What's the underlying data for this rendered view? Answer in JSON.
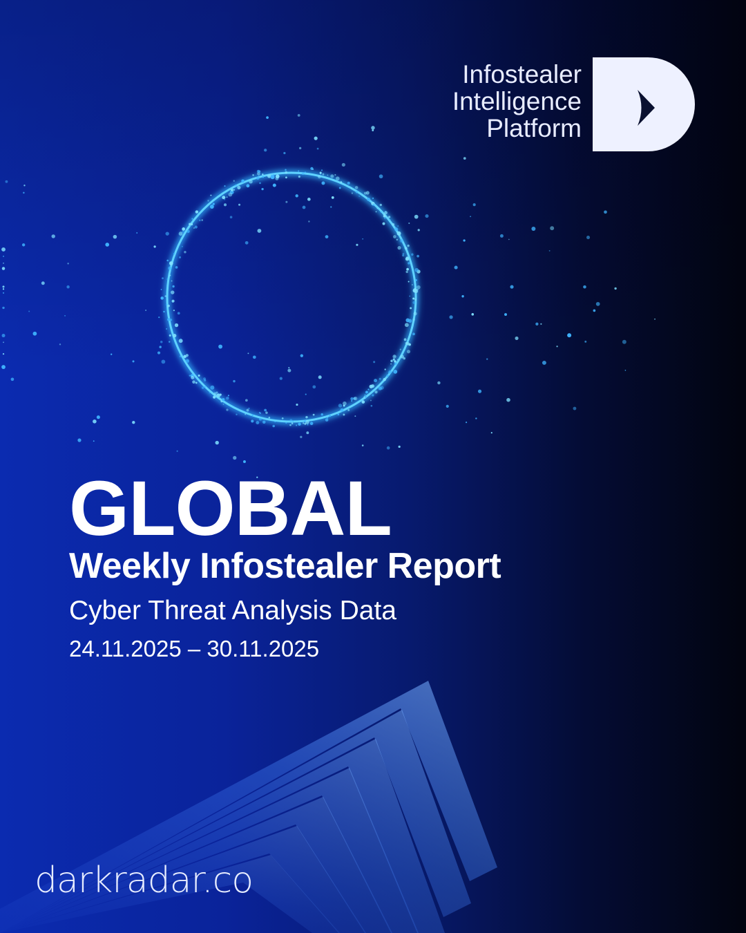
{
  "brand": {
    "logo_lines": [
      "Infostealer",
      "Intelligence",
      "Platform"
    ],
    "logo_icon": "d-arrow-logo",
    "website": "darkradar.co"
  },
  "hero": {
    "title": "GLOBAL",
    "subtitle": "Weekly Infostealer Report",
    "tagline": "Cyber Threat Analysis Data",
    "date_range": "24.11.2025 – 30.11.2025"
  },
  "colors": {
    "accent": "#2fb6ff",
    "background_blue": "#0b2bb0",
    "logo_fill": "#eef1ff"
  }
}
